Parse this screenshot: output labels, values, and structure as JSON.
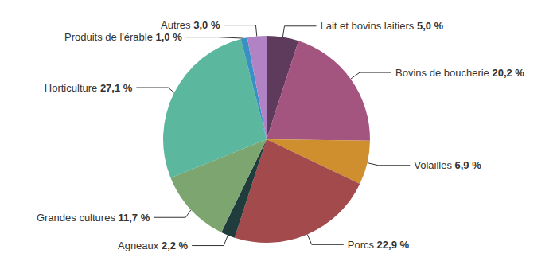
{
  "chart_data": {
    "type": "pie",
    "categories": [
      "Lait et bovins laitiers",
      "Bovins de boucherie",
      "Volailles",
      "Porcs",
      "Agneaux",
      "Grandes cultures",
      "Horticulture",
      "Produits de l'érable",
      "Autres"
    ],
    "values": [
      5.0,
      20.2,
      6.9,
      22.9,
      2.2,
      11.7,
      27.1,
      1.0,
      3.0
    ],
    "value_labels": [
      "5,0 %",
      "20,2 %",
      "6,9 %",
      "22,9 %",
      "2,2 %",
      "11,7 %",
      "27,1 %",
      "1,0 %",
      "3,0 %"
    ],
    "colors": [
      "#5e3b5c",
      "#a3547f",
      "#cf8f2e",
      "#a34a4c",
      "#213c3c",
      "#7ca56f",
      "#5bb89f",
      "#3a8fc4",
      "#b283c4"
    ],
    "data_labels": true
  }
}
